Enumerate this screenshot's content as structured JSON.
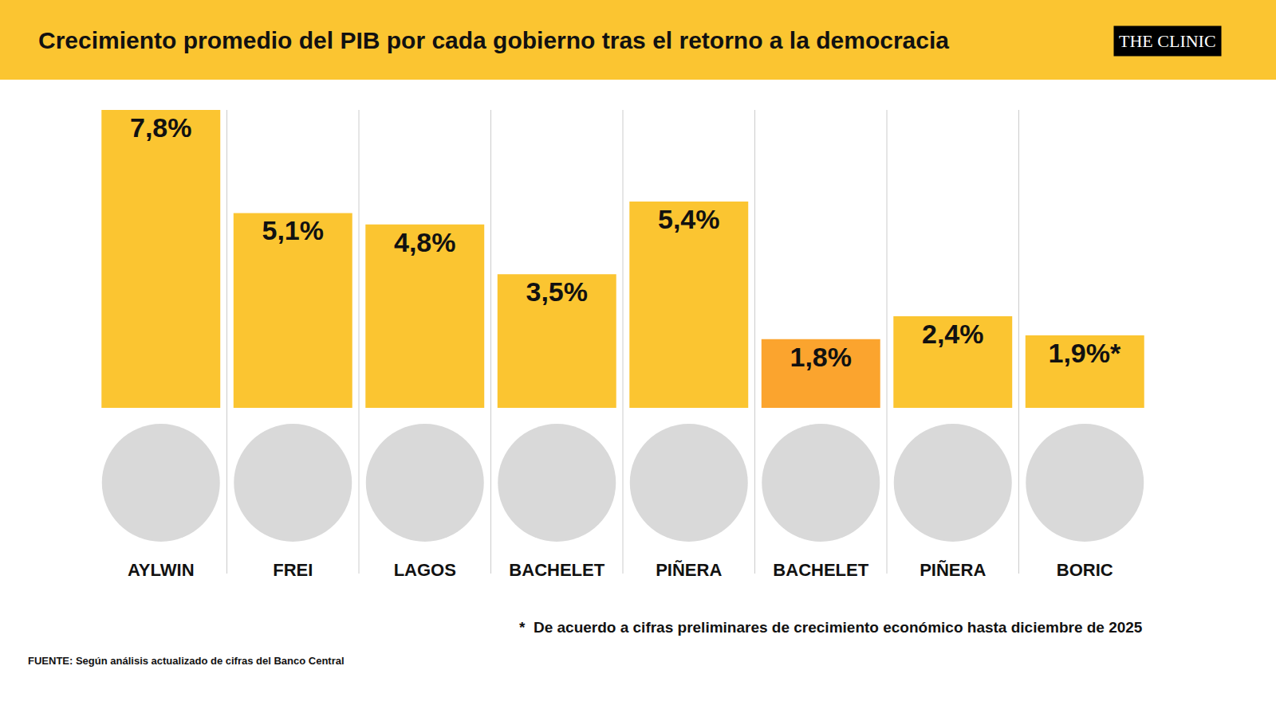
{
  "chart_data": {
    "type": "bar",
    "title": "Crecimiento promedio del PIB por cada gobierno tras el retorno a la democracia",
    "brand": "THE CLINIC",
    "categories": [
      "AYLWIN",
      "FREI",
      "LAGOS",
      "BACHELET",
      "PIÑERA",
      "BACHELET",
      "PIÑERA",
      "BORIC"
    ],
    "values": [
      7.8,
      5.1,
      4.8,
      3.5,
      5.4,
      1.8,
      2.4,
      1.9
    ],
    "value_labels": [
      "7,8%",
      "5,1%",
      "4,8%",
      "3,5%",
      "5,4%",
      "1,8%",
      "2,4%",
      "1,9%*"
    ],
    "colors": [
      "#fbc531",
      "#fbc531",
      "#fbc531",
      "#fbc531",
      "#fbc531",
      "#fba42e",
      "#fbc531",
      "#fbc531"
    ],
    "ylim": [
      0,
      7.8
    ],
    "data_labels": true,
    "tick_labels": "x",
    "grid": false,
    "footnote": "*  De acuerdo a cifras preliminares de crecimiento económico hasta diciembre de 2025",
    "source": "FUENTE: Según análisis actualizado de cifras del Banco Central"
  }
}
